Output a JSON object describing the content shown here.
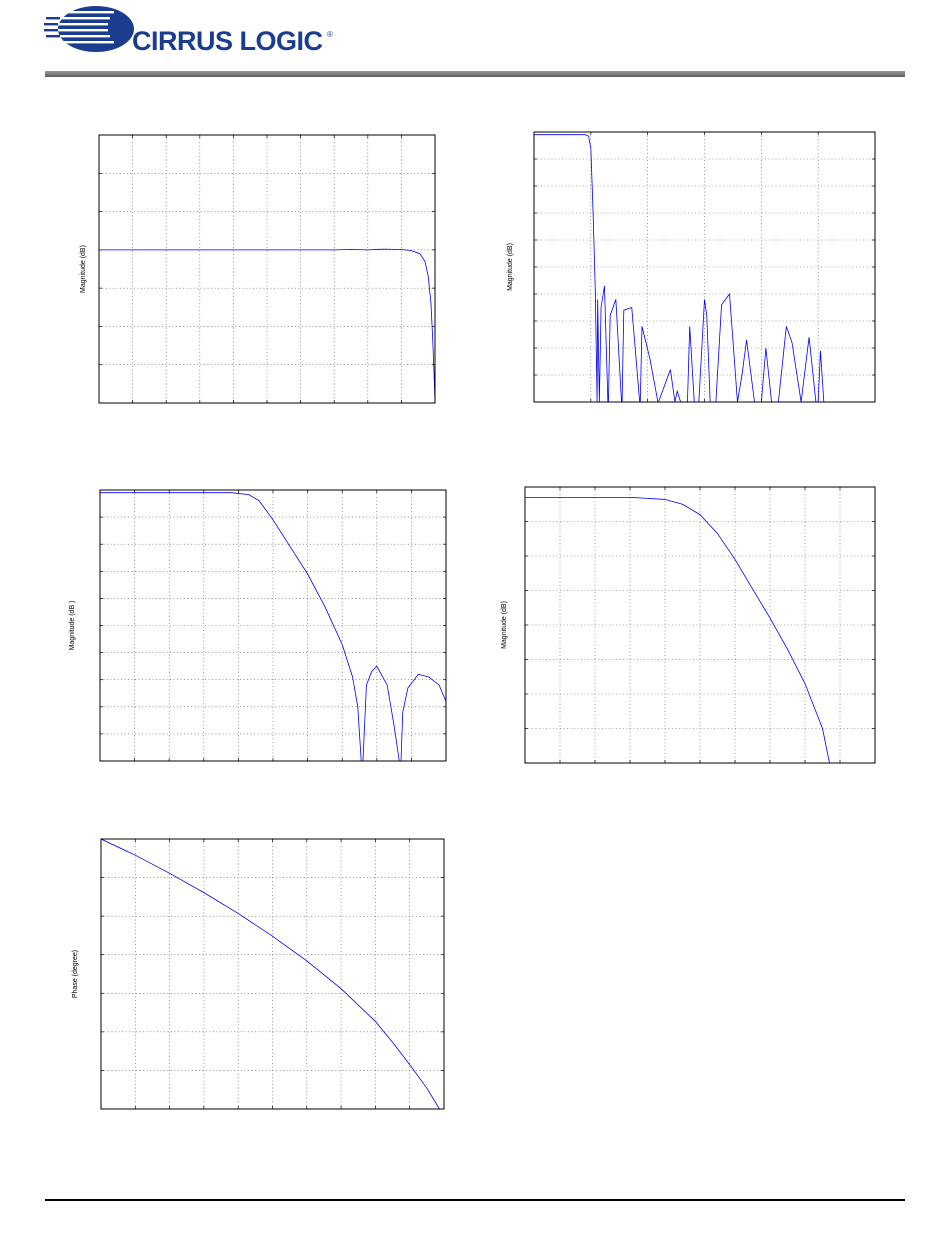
{
  "header": {
    "brand": "CIRRUS LOGIC",
    "registered_mark": "®",
    "brand_color": "#1b3d8f"
  },
  "chart_data": [
    {
      "type": "line",
      "id": "passband",
      "title": "",
      "xlabel": "",
      "ylabel": "Magnitude (dB)",
      "xlim": [
        0,
        10
      ],
      "ylim": [
        -4,
        3
      ],
      "grid": true,
      "color": "#0000ff",
      "series": [
        {
          "x": [
            0,
            1,
            2,
            3,
            4,
            5,
            6,
            7,
            7.5,
            8,
            8.5,
            9,
            9.3,
            9.55,
            9.7,
            9.8,
            9.88,
            9.93,
            9.97,
            10
          ],
          "y": [
            0,
            0,
            0,
            0,
            0,
            0,
            0,
            0,
            0.01,
            0,
            0.02,
            0.01,
            -0.02,
            -0.1,
            -0.3,
            -0.7,
            -1.4,
            -2.3,
            -3.2,
            -4
          ]
        }
      ]
    },
    {
      "type": "line",
      "id": "stopband",
      "title": "",
      "xlabel": "",
      "ylabel": "Magnitude (dB)",
      "xlim": [
        0,
        3
      ],
      "ylim": [
        -100,
        0
      ],
      "grid": true,
      "color": "#0000ff",
      "series": [
        {
          "x": [
            0,
            0.3,
            0.45,
            0.48,
            0.5,
            0.52,
            0.54,
            0.555,
            0.56,
            0.575,
            0.59,
            0.62,
            0.65,
            0.655,
            0.67,
            0.72,
            0.77,
            0.775,
            0.79,
            0.86,
            0.93,
            0.935,
            0.95,
            1.02,
            1.09,
            1.095,
            1.2,
            1.24,
            1.26,
            1.29,
            1.35,
            1.37,
            1.41,
            1.45,
            1.5,
            1.5,
            1.52,
            1.55,
            1.6,
            1.65,
            1.72,
            1.79,
            1.83,
            1.87,
            1.94,
            2.0,
            2.04,
            2.09,
            2.15,
            2.22,
            2.27,
            2.35,
            2.42,
            2.48,
            2.5,
            2.52,
            2.55
          ],
          "y": [
            -1,
            -1,
            -1,
            -1.5,
            -6,
            -30,
            -60,
            -100,
            -62,
            -100,
            -65,
            -57,
            -100,
            -100,
            -68,
            -62,
            -100,
            -100,
            -66,
            -65,
            -100,
            -100,
            -72,
            -84,
            -100,
            -100,
            -88,
            -100,
            -96,
            -100,
            -100,
            -72,
            -100,
            -100,
            -62,
            -62,
            -68,
            -100,
            -100,
            -64,
            -60,
            -100,
            -90,
            -77,
            -100,
            -100,
            -80,
            -100,
            -100,
            -72,
            -78,
            -100,
            -76,
            -100,
            -100,
            -81,
            -100
          ]
        }
      ]
    },
    {
      "type": "line",
      "id": "transition-band",
      "title": "",
      "xlabel": "",
      "ylabel": "Magnitude (dB )",
      "xlim": [
        0,
        10
      ],
      "ylim": [
        -100,
        0
      ],
      "grid": true,
      "color": "#0000ff",
      "series": [
        {
          "x": [
            0,
            2,
            3.8,
            4.3,
            4.6,
            5.0,
            5.5,
            6.0,
            6.5,
            7.0,
            7.3,
            7.45,
            7.55,
            7.6,
            7.7,
            7.85,
            8.0,
            8.3,
            8.5,
            8.65,
            8.7,
            8.75,
            8.9,
            9.2,
            9.5,
            9.8,
            10
          ],
          "y": [
            -1,
            -1,
            -1,
            -1.7,
            -4,
            -11,
            -21,
            -31,
            -43,
            -57,
            -69,
            -80,
            -100,
            -100,
            -72,
            -67,
            -65,
            -72,
            -87,
            -100,
            -100,
            -82,
            -73,
            -68,
            -69,
            -72,
            -78
          ]
        }
      ]
    },
    {
      "type": "line",
      "id": "transition-band-detail",
      "title": "",
      "xlabel": "",
      "ylabel": "Magnitude (dB)",
      "xlim": [
        0,
        10
      ],
      "ylim": [
        -80,
        0
      ],
      "grid": true,
      "color": "#0000ff",
      "series": [
        {
          "x": [
            0,
            2,
            3,
            4,
            4.5,
            5,
            5.5,
            6,
            6.5,
            7,
            7.5,
            8,
            8.5,
            8.7
          ],
          "y": [
            -3,
            -3,
            -3,
            -3.6,
            -5,
            -8,
            -13.5,
            -21,
            -29.5,
            -38,
            -47,
            -57,
            -70,
            -80
          ]
        }
      ]
    },
    {
      "type": "line",
      "id": "phase",
      "title": "",
      "xlabel": "",
      "ylabel": "Phase (degree)",
      "xlim": [
        0,
        10
      ],
      "ylim": [
        -700,
        0
      ],
      "grid": true,
      "color": "#0000ff",
      "series": [
        {
          "x": [
            0,
            1,
            2,
            3,
            4,
            5,
            6,
            7,
            8,
            8.5,
            9,
            9.5,
            9.8,
            10
          ],
          "y": [
            0,
            -42,
            -89,
            -139,
            -193,
            -252,
            -316,
            -388,
            -473,
            -527,
            -585,
            -646,
            -690,
            -720
          ]
        }
      ]
    }
  ]
}
